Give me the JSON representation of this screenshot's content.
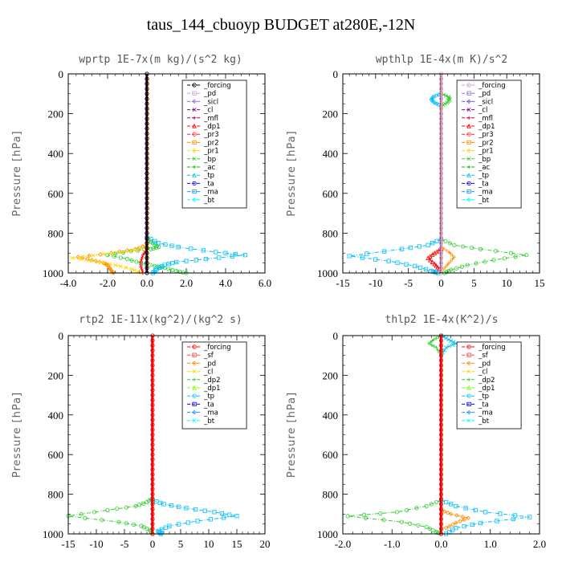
{
  "title": "taus_144_cbuoyp  BUDGET at280E,-12N",
  "chart_data": [
    {
      "type": "line",
      "title": "wprtp  1E-7x(m kg)/(s^2 kg)",
      "ylabel": "Pressure [hPa]",
      "xlim": [
        -4.0,
        6.0
      ],
      "ylim": [
        1000,
        0
      ],
      "xticks": [
        -4.0,
        -2.0,
        0.0,
        2.0,
        4.0,
        6.0
      ],
      "xtick_labels": [
        "-4.0",
        "-2.0",
        "0.0",
        "2.0",
        "4.0",
        "6.0"
      ],
      "yticks": [
        0,
        200,
        400,
        600,
        800,
        1000
      ],
      "legend_position": "top-right",
      "legend": [
        "_forcing",
        "_pd",
        "_sicl",
        "_cl",
        "_mfl",
        "_dp1",
        "_pr3",
        "_pr2",
        "_pr1",
        "_bp",
        "_ac",
        "_tp",
        "_ta",
        "_ma",
        "_bt"
      ],
      "colors": [
        "#000000",
        "#c8a2c8",
        "#9370db",
        "#800080",
        "#b0004a",
        "#ff0000",
        "#ff2020",
        "#ff8c00",
        "#ffd700",
        "#32cd32",
        "#00b000",
        "#00bfff",
        "#0000ff",
        "#1e90ff",
        "#00ffff"
      ],
      "series": [
        {
          "name": "_bp",
          "color": "#32cd32",
          "points": [
            [
              0,
              830
            ],
            [
              0.3,
              850
            ],
            [
              0.6,
              870
            ],
            [
              0.2,
              880
            ],
            [
              -0.8,
              890
            ],
            [
              -2.0,
              910
            ],
            [
              -1.0,
              930
            ],
            [
              -0.3,
              950
            ],
            [
              0.4,
              965
            ],
            [
              0.9,
              975
            ],
            [
              1.5,
              990
            ],
            [
              2.0,
              1000
            ]
          ]
        },
        {
          "name": "_tp",
          "color": "#00bfff",
          "points": [
            [
              0,
              820
            ],
            [
              0.6,
              850
            ],
            [
              1.6,
              870
            ],
            [
              3.5,
              895
            ],
            [
              5.0,
              910
            ],
            [
              3.0,
              930
            ],
            [
              1.5,
              945
            ],
            [
              0.9,
              960
            ],
            [
              0.5,
              980
            ],
            [
              0.3,
              1000
            ]
          ]
        },
        {
          "name": "_pr2",
          "color": "#ff8c00",
          "points": [
            [
              0,
              860
            ],
            [
              -0.6,
              880
            ],
            [
              -1.8,
              900
            ],
            [
              -3.5,
              920
            ],
            [
              -2.8,
              935
            ],
            [
              -2.2,
              950
            ],
            [
              -2.0,
              960
            ],
            [
              -1.9,
              975
            ],
            [
              -1.8,
              990
            ],
            [
              -1.7,
              1000
            ]
          ]
        },
        {
          "name": "_pr1",
          "color": "#ffd700",
          "points": [
            [
              0,
              870
            ],
            [
              -0.8,
              890
            ],
            [
              -2.2,
              905
            ],
            [
              -3.8,
              925
            ],
            [
              -2.5,
              945
            ],
            [
              -1.6,
              960
            ],
            [
              -0.8,
              980
            ],
            [
              -0.3,
              1000
            ]
          ]
        },
        {
          "name": "_dp1",
          "color": "#ff0000",
          "points": [
            [
              0,
              880
            ],
            [
              -0.2,
              910
            ],
            [
              -0.3,
              940
            ],
            [
              -0.3,
              970
            ],
            [
              -0.2,
              1000
            ]
          ]
        },
        {
          "name": "_forcing",
          "color": "#000000",
          "points": [
            [
              0,
              0
            ],
            [
              0,
              1000
            ]
          ]
        }
      ]
    },
    {
      "type": "line",
      "title": "wpthlp  1E-4x(m K)/s^2",
      "ylabel": "Pressure [hPa]",
      "xlim": [
        -15,
        15
      ],
      "ylim": [
        1000,
        0
      ],
      "xticks": [
        -15,
        -10,
        -5,
        0,
        5,
        10,
        15
      ],
      "xtick_labels": [
        "-15",
        "-10",
        "-5",
        "0",
        "5",
        "10",
        "15"
      ],
      "yticks": [
        0,
        200,
        400,
        600,
        800,
        1000
      ],
      "legend_position": "top-right",
      "legend": [
        "_forcing",
        "_pd",
        "_sicl",
        "_cl",
        "_mfl",
        "_dp1",
        "_pr3",
        "_pr2",
        "_pr1",
        "_bp",
        "_ac",
        "_tp",
        "_ta",
        "_ma",
        "_bt"
      ],
      "colors": [
        "#c8a2c8",
        "#9370db",
        "#6a5acd",
        "#800080",
        "#b0004a",
        "#ff0000",
        "#ff2020",
        "#ff8c00",
        "#ffd700",
        "#32cd32",
        "#00b000",
        "#00bfff",
        "#0000ff",
        "#1e90ff",
        "#00ffff"
      ],
      "series": [
        {
          "name": "_bp",
          "color": "#32cd32",
          "points": [
            [
              0,
              830
            ],
            [
              2,
              860
            ],
            [
              6,
              880
            ],
            [
              13,
              910
            ],
            [
              8,
              935
            ],
            [
              4,
              960
            ],
            [
              1.5,
              985
            ],
            [
              0.5,
              1000
            ]
          ]
        },
        {
          "name": "_tp",
          "color": "#00bfff",
          "points": [
            [
              0,
              830
            ],
            [
              -2,
              860
            ],
            [
              -6,
              880
            ],
            [
              -14,
              915
            ],
            [
              -8,
              940
            ],
            [
              -4,
              965
            ],
            [
              -1.5,
              990
            ],
            [
              -0.5,
              1000
            ]
          ]
        },
        {
          "name": "_tp-top",
          "color": "#00bfff",
          "points": [
            [
              0,
              100
            ],
            [
              -1.2,
              115
            ],
            [
              -1.5,
              130
            ],
            [
              -1.0,
              145
            ],
            [
              0,
              160
            ]
          ]
        },
        {
          "name": "_bp-top",
          "color": "#32cd32",
          "points": [
            [
              0,
              100
            ],
            [
              1.1,
              115
            ],
            [
              1.3,
              130
            ],
            [
              0.9,
              145
            ],
            [
              0,
              160
            ]
          ]
        },
        {
          "name": "_pr2",
          "color": "#ff8c00",
          "points": [
            [
              0,
              870
            ],
            [
              1.2,
              895
            ],
            [
              2,
              920
            ],
            [
              1.2,
              950
            ],
            [
              0.4,
              980
            ]
          ]
        },
        {
          "name": "_dp1",
          "color": "#ff0000",
          "points": [
            [
              0,
              880
            ],
            [
              -1,
              900
            ],
            [
              -2,
              925
            ],
            [
              -1,
              955
            ],
            [
              -0.3,
              980
            ]
          ]
        },
        {
          "name": "_forcing",
          "color": "#c8a2c8",
          "points": [
            [
              0,
              0
            ],
            [
              0,
              1000
            ]
          ]
        }
      ]
    },
    {
      "type": "line",
      "title": "rtp2  1E-11x(kg^2)/(kg^2 s)",
      "ylabel": "Pressure [hPa]",
      "xlim": [
        -15,
        20
      ],
      "ylim": [
        1000,
        0
      ],
      "xticks": [
        -15,
        -10,
        -5,
        0,
        5,
        10,
        15,
        20
      ],
      "xtick_labels": [
        "-15",
        "-10",
        "-5",
        "0",
        "5",
        "10",
        "15",
        "20"
      ],
      "yticks": [
        0,
        200,
        400,
        600,
        800,
        1000
      ],
      "legend_position": "top-right",
      "legend": [
        "_forcing",
        "_sf",
        "_pd",
        "_cl",
        "_dp2",
        "_dp1",
        "_tp",
        "_ta",
        "_ma",
        "_bt"
      ],
      "colors": [
        "#ff0000",
        "#ff4040",
        "#ff8c00",
        "#ffd700",
        "#32cd32",
        "#7cfc00",
        "#00bfff",
        "#0000ff",
        "#1e90ff",
        "#00ffff"
      ],
      "series": [
        {
          "name": "_dp1",
          "color": "#32cd32",
          "points": [
            [
              0,
              820
            ],
            [
              -1,
              840
            ],
            [
              -3,
              860
            ],
            [
              -8,
              880
            ],
            [
              -15,
              910
            ],
            [
              -6,
              940
            ],
            [
              -2,
              960
            ],
            [
              -0.5,
              980
            ],
            [
              0,
              1000
            ]
          ]
        },
        {
          "name": "_tp",
          "color": "#00bfff",
          "points": [
            [
              0,
              830
            ],
            [
              2,
              850
            ],
            [
              6,
              870
            ],
            [
              11,
              890
            ],
            [
              15,
              910
            ],
            [
              8,
              935
            ],
            [
              3,
              960
            ],
            [
              1,
              985
            ],
            [
              1.5,
              1000
            ]
          ]
        },
        {
          "name": "_forcing",
          "color": "#ff0000",
          "points": [
            [
              0,
              0
            ],
            [
              0,
              1000
            ]
          ]
        }
      ]
    },
    {
      "type": "line",
      "title": "thlp2  1E-4x(K^2)/s",
      "ylabel": "Pressure [hPa]",
      "xlim": [
        -2.0,
        2.0
      ],
      "ylim": [
        1000,
        0
      ],
      "xticks": [
        -2.0,
        -1.0,
        0.0,
        1.0,
        2.0
      ],
      "xtick_labels": [
        "-2.0",
        "-1.0",
        "0.0",
        "1.0",
        "2.0"
      ],
      "yticks": [
        0,
        200,
        400,
        600,
        800,
        1000
      ],
      "legend_position": "top-right",
      "legend": [
        "_forcing",
        "_sf",
        "_pd",
        "_cl",
        "_dp2",
        "_dp1",
        "_tp",
        "_ta",
        "_ma",
        "_bt"
      ],
      "colors": [
        "#ff0000",
        "#ff4040",
        "#ff8c00",
        "#ffd700",
        "#32cd32",
        "#7cfc00",
        "#00bfff",
        "#0000ff",
        "#1e90ff",
        "#00ffff"
      ],
      "series": [
        {
          "name": "_dp1",
          "color": "#32cd32",
          "points": [
            [
              0,
              830
            ],
            [
              -0.3,
              860
            ],
            [
              -0.9,
              890
            ],
            [
              -1.9,
              910
            ],
            [
              -0.8,
              940
            ],
            [
              -0.3,
              965
            ],
            [
              -0.1,
              990
            ],
            [
              0,
              1000
            ]
          ]
        },
        {
          "name": "_tp",
          "color": "#00bfff",
          "points": [
            [
              0,
              830
            ],
            [
              0.3,
              860
            ],
            [
              0.9,
              890
            ],
            [
              1.8,
              915
            ],
            [
              0.8,
              945
            ],
            [
              0.3,
              970
            ],
            [
              0.1,
              1000
            ]
          ]
        },
        {
          "name": "_pd",
          "color": "#ff8c00",
          "points": [
            [
              0,
              880
            ],
            [
              0.2,
              900
            ],
            [
              0.55,
              920
            ],
            [
              0.3,
              945
            ],
            [
              0.1,
              970
            ]
          ]
        },
        {
          "name": "_tp-top",
          "color": "#00bfff",
          "points": [
            [
              0,
              0
            ],
            [
              0.15,
              20
            ],
            [
              0.3,
              40
            ],
            [
              0.1,
              60
            ],
            [
              0,
              100
            ]
          ]
        },
        {
          "name": "_dp1-top",
          "color": "#32cd32",
          "points": [
            [
              0,
              0
            ],
            [
              -0.15,
              20
            ],
            [
              -0.25,
              40
            ],
            [
              -0.1,
              60
            ],
            [
              0,
              100
            ]
          ]
        },
        {
          "name": "_forcing",
          "color": "#ff0000",
          "points": [
            [
              0,
              0
            ],
            [
              0,
              1000
            ]
          ]
        }
      ]
    }
  ]
}
